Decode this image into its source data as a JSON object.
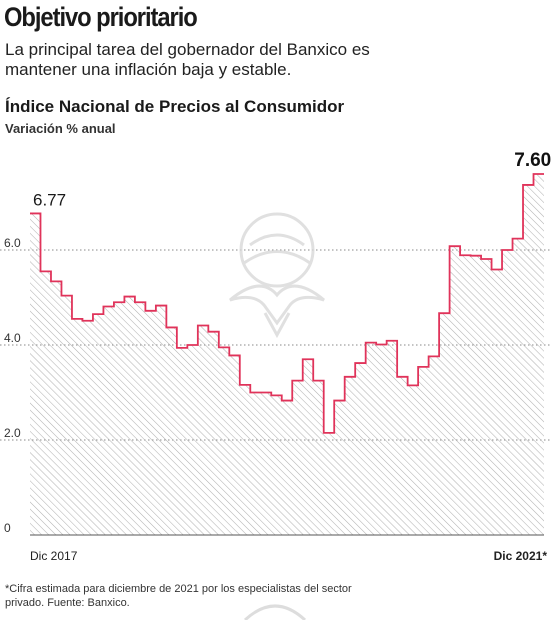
{
  "header": {
    "headline": "Objetivo prioritario",
    "dek": "La principal tarea del gobernador del Banxico es mantener una inflación baja y estable."
  },
  "footer": {
    "footnote": "*Cifra estimada para diciembre de 2021 por los especialistas del sector privado. Fuente: Banxico."
  },
  "colors": {
    "line": "#e0335a",
    "hatch": "#b3b3b3",
    "gridline": "#888888",
    "text": "#1a1a1a"
  },
  "chart_data": {
    "type": "area",
    "title": "Índice Nacional de Precios al Consumidor",
    "subtitle": "Variación % anual",
    "xlabel": "",
    "ylabel": "",
    "ylim": [
      0,
      8
    ],
    "yticks": [
      0,
      2.0,
      4.0,
      6.0
    ],
    "ytick_labels": [
      "0",
      "2.0",
      "4.0",
      "6.0"
    ],
    "x_start_label": "Dec 2017",
    "x_end_label": "Dic 2021*",
    "x_tick_labels": [
      "Dic 2017",
      "Dic 2021*"
    ],
    "grid": "horizontal dotted",
    "step": true,
    "series": [
      {
        "values": [
          6.77,
          5.55,
          5.34,
          5.04,
          4.55,
          4.51,
          4.65,
          4.81,
          4.9,
          5.02,
          4.9,
          4.72,
          4.83,
          4.37,
          3.94,
          4.0,
          4.41,
          4.28,
          3.95,
          3.78,
          3.16,
          3.0,
          3.0,
          2.94,
          2.83,
          3.25,
          3.7,
          3.25,
          2.15,
          2.83,
          3.33,
          3.62,
          4.05,
          4.01,
          4.09,
          3.33,
          3.15,
          3.54,
          3.76,
          4.67,
          6.08,
          5.89,
          5.88,
          5.81,
          5.59,
          6.0,
          6.24,
          7.37,
          7.6
        ]
      }
    ],
    "annotations": [
      {
        "text": "6.77",
        "index": 0
      },
      {
        "text": "7.60",
        "index": 48
      }
    ]
  }
}
